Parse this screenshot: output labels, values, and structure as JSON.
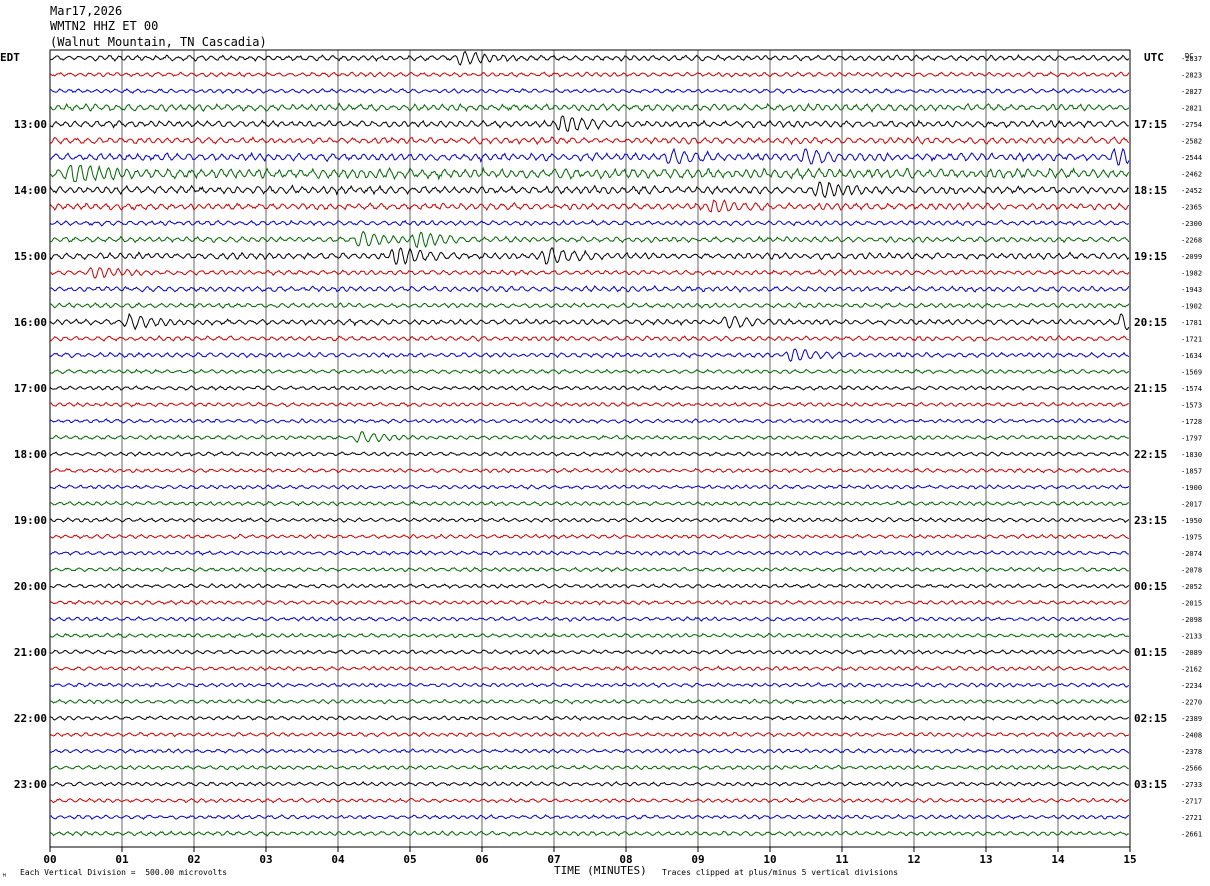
{
  "header": {
    "date": "Mar17,2026",
    "channel": "WMTN2 HHZ ET 00",
    "station": "(Walnut Mountain, TN Cascadia)"
  },
  "labels": {
    "left_tz": "EDT",
    "right_tz": "UTC",
    "dc_header": "DC",
    "x_title": "TIME (MINUTES)",
    "scale_note": "Each Vertical Division =  500.00 microvolts",
    "clip_note": "Traces clipped at plus/minus 5 vertical divisions",
    "corner_mark": "ᴹ"
  },
  "chart_data": {
    "type": "line",
    "title": "",
    "xlabel": "TIME (MINUTES)",
    "xlim": [
      0,
      15
    ],
    "x_ticks": [
      "00",
      "01",
      "02",
      "03",
      "04",
      "05",
      "06",
      "07",
      "08",
      "09",
      "10",
      "11",
      "12",
      "13",
      "14",
      "15"
    ],
    "trace_colors": [
      "#000000",
      "#cc0000",
      "#0000cc",
      "#006600"
    ],
    "left_hour_labels": [
      "13:00",
      "14:00",
      "15:00",
      "16:00",
      "17:00",
      "18:00",
      "19:00",
      "20:00",
      "21:00",
      "22:00",
      "23:00"
    ],
    "right_hour_labels": [
      "17:15",
      "18:15",
      "19:15",
      "20:15",
      "21:15",
      "22:15",
      "23:15",
      "00:15",
      "01:15",
      "02:15",
      "03:15"
    ],
    "first_labeled_row": 4,
    "rows_per_hour": 4,
    "dc_offsets": [
      "-2837",
      "-2823",
      "-2827",
      "-2821",
      "-2754",
      "-2582",
      "-2544",
      "-2462",
      "-2452",
      "-2365",
      "-2300",
      "-2268",
      "-2099",
      "-1982",
      "-1943",
      "-1902",
      "-1781",
      "-1721",
      "-1634",
      "-1569",
      "-1574",
      "-1573",
      "-1728",
      "-1797",
      "-1830",
      "-1857",
      "-1900",
      "-2017",
      "-1950",
      "-1975",
      "-2074",
      "-2078",
      "-2052",
      "-2015",
      "-2098",
      "-2133",
      "-2089",
      "-2162",
      "-2234",
      "-2270",
      "-2389",
      "-2408",
      "-2378",
      "-2566",
      "-2733",
      "-2717",
      "-2721",
      "-2661"
    ],
    "trace_amplitude": [
      2.5,
      2.0,
      2.0,
      3.2,
      3.0,
      3.0,
      3.5,
      4.5,
      3.5,
      3.0,
      2.2,
      2.5,
      3.0,
      2.2,
      2.5,
      2.2,
      2.5,
      2.2,
      2.2,
      1.8,
      1.8,
      1.8,
      1.8,
      1.8,
      1.8,
      1.8,
      1.8,
      1.8,
      1.8,
      1.8,
      1.8,
      1.8,
      1.8,
      1.8,
      1.8,
      1.8,
      1.8,
      1.8,
      1.8,
      1.8,
      1.8,
      1.8,
      1.8,
      1.8,
      1.8,
      1.8,
      1.8,
      2.0
    ],
    "events": [
      {
        "row": 0,
        "minute": 5.7,
        "amplitude": 6
      },
      {
        "row": 4,
        "minute": 7.1,
        "amplitude": 8
      },
      {
        "row": 6,
        "minute": 8.6,
        "amplitude": 6
      },
      {
        "row": 6,
        "minute": 10.5,
        "amplitude": 6
      },
      {
        "row": 6,
        "minute": 14.8,
        "amplitude": 7
      },
      {
        "row": 7,
        "minute": 0.3,
        "amplitude": 9
      },
      {
        "row": 8,
        "minute": 10.7,
        "amplitude": 7
      },
      {
        "row": 9,
        "minute": 9.2,
        "amplitude": 5
      },
      {
        "row": 11,
        "minute": 4.3,
        "amplitude": 7
      },
      {
        "row": 11,
        "minute": 5.1,
        "amplitude": 7
      },
      {
        "row": 12,
        "minute": 4.8,
        "amplitude": 9
      },
      {
        "row": 12,
        "minute": 6.9,
        "amplitude": 8
      },
      {
        "row": 13,
        "minute": 0.6,
        "amplitude": 5
      },
      {
        "row": 16,
        "minute": 1.1,
        "amplitude": 6
      },
      {
        "row": 16,
        "minute": 9.4,
        "amplitude": 5
      },
      {
        "row": 16,
        "minute": 14.9,
        "amplitude": 8
      },
      {
        "row": 18,
        "minute": 10.3,
        "amplitude": 6
      },
      {
        "row": 23,
        "minute": 4.3,
        "amplitude": 5
      }
    ]
  }
}
